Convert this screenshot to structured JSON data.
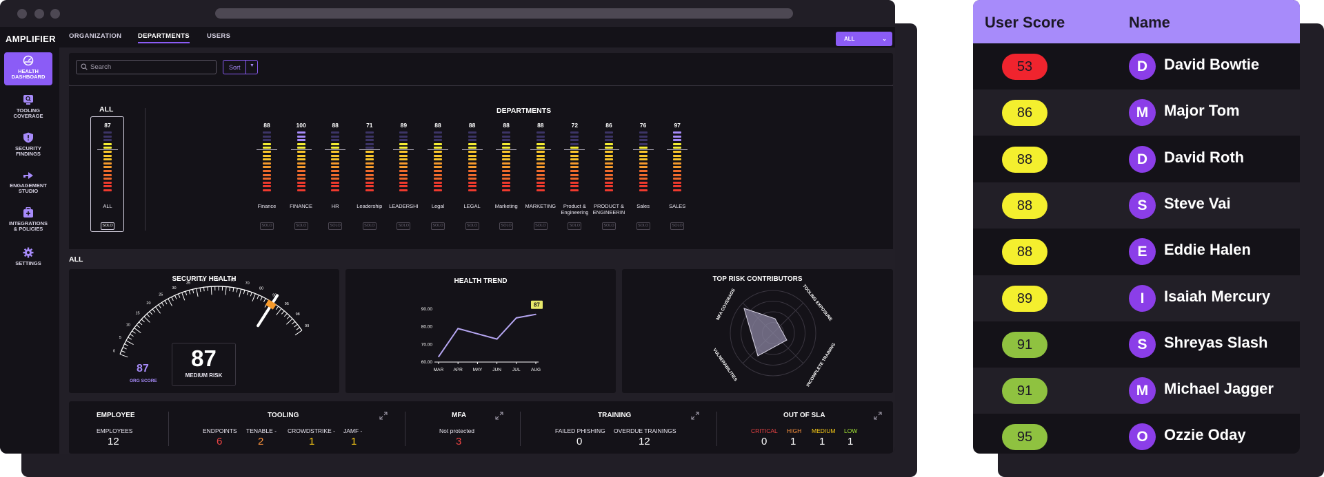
{
  "app": {
    "logo": "AMPLIFIER"
  },
  "sidebar": {
    "items": [
      {
        "label_1": "HEALTH",
        "label_2": "DASHBOARD",
        "icon": "gauge-icon"
      },
      {
        "label_1": "TOOLING",
        "label_2": "COVERAGE",
        "icon": "search-box-icon"
      },
      {
        "label_1": "SECURITY",
        "label_2": "FINDINGS",
        "icon": "shield-icon"
      },
      {
        "label_1": "ENGAGEMENT",
        "label_2": "STUDIO",
        "icon": "arrow-icon"
      },
      {
        "label_1": "INTEGRATIONS",
        "label_2": "& POLICIES",
        "icon": "plus-case-icon"
      },
      {
        "label_1": "SETTINGS",
        "label_2": "",
        "icon": "gear-icon"
      }
    ]
  },
  "tabs": [
    "ORGANIZATION",
    "DEPARTMENTS",
    "USERS"
  ],
  "filter": {
    "selected": "ALL"
  },
  "search": {
    "placeholder": "Search"
  },
  "sort": {
    "label": "Sort"
  },
  "all_column": {
    "title": "ALL",
    "value": "87",
    "name": "ALL",
    "solo": "SOLO",
    "fill": 0.87
  },
  "departments": {
    "title": "DEPARTMENTS",
    "columns": [
      {
        "name_1": "Finance",
        "name_2": "",
        "value": "88",
        "fill": 0.88,
        "tone": "warm"
      },
      {
        "name_1": "FINANCE",
        "name_2": "",
        "value": "100",
        "fill": 1.0,
        "tone": "warm"
      },
      {
        "name_1": "HR",
        "name_2": "",
        "value": "88",
        "fill": 0.88,
        "tone": "warm"
      },
      {
        "name_1": "Leadership",
        "name_2": "",
        "value": "71",
        "fill": 0.71,
        "tone": "warm"
      },
      {
        "name_1": "LEADERSHI",
        "name_2": "",
        "value": "89",
        "fill": 0.89,
        "tone": "warm"
      },
      {
        "name_1": "Legal",
        "name_2": "",
        "value": "88",
        "fill": 0.88,
        "tone": "warm"
      },
      {
        "name_1": "LEGAL",
        "name_2": "",
        "value": "88",
        "fill": 0.88,
        "tone": "warm"
      },
      {
        "name_1": "Marketing",
        "name_2": "",
        "value": "88",
        "fill": 0.88,
        "tone": "warm"
      },
      {
        "name_1": "MARKETING",
        "name_2": "",
        "value": "88",
        "fill": 0.88,
        "tone": "warm"
      },
      {
        "name_1": "Product &",
        "name_2": "Engineering",
        "value": "72",
        "fill": 0.72,
        "tone": "warm"
      },
      {
        "name_1": "PRODUCT &",
        "name_2": "ENGINEERIN",
        "value": "86",
        "fill": 0.86,
        "tone": "warm"
      },
      {
        "name_1": "Sales",
        "name_2": "",
        "value": "76",
        "fill": 0.76,
        "tone": "warm"
      },
      {
        "name_1": "SALES",
        "name_2": "",
        "value": "97",
        "fill": 0.97,
        "tone": "warm"
      }
    ],
    "solo": "SOLO"
  },
  "section_label": "ALL",
  "security_health": {
    "title": "SECURITY HEALTH",
    "score": "87",
    "risk_label": "MEDIUM RISK",
    "org_score": "87",
    "org_score_label": "ORG SCORE",
    "gauge_ticks": [
      "0",
      "5",
      "10",
      "15",
      "20",
      "25",
      "30",
      "35",
      "40",
      "50",
      "60",
      "70",
      "80",
      "90",
      "95",
      "98",
      "99"
    ],
    "needle_value": 87
  },
  "health_trend": {
    "title": "HEALTH TREND",
    "chart_data": {
      "type": "line",
      "x": [
        "MAR",
        "APR",
        "MAY",
        "JUN",
        "JUL",
        "AUG"
      ],
      "y_ticks": [
        "90.00",
        "80.00",
        "70.00",
        "60.00"
      ],
      "values": [
        63,
        79,
        76,
        73,
        85,
        87
      ],
      "ylim": [
        60,
        90
      ],
      "end_label": "87"
    }
  },
  "top_risk": {
    "title": "TOP RISK CONTRIBUTORS",
    "axes": [
      "MFA COVERAGE",
      "TOOLING EXPOSURE",
      "INCOMPLETE TRAINING",
      "VULNERABILITIES"
    ]
  },
  "bottom": {
    "employee": {
      "title": "EMPLOYEE",
      "label": "EMPLOYEES",
      "value": "12"
    },
    "tooling": {
      "title": "TOOLING",
      "items": [
        {
          "label": "ENDPOINTS",
          "value": "6",
          "color": "#ef4444"
        },
        {
          "label": "TENABLE -",
          "value": "2",
          "color": "#fb923c"
        },
        {
          "label": "CROWDSTRIKE -",
          "value": "1",
          "color": "#facc15"
        },
        {
          "label": "JAMF -",
          "value": "1",
          "color": "#facc15"
        }
      ]
    },
    "mfa": {
      "title": "MFA",
      "label": "Not protected",
      "value": "3",
      "color": "#ef4444"
    },
    "training": {
      "title": "TRAINING",
      "items": [
        {
          "label": "FAILED PHISHING",
          "value": "0"
        },
        {
          "label": "OVERDUE TRAININGS",
          "value": "12"
        }
      ]
    },
    "sla": {
      "title": "OUT OF SLA",
      "items": [
        {
          "label": "CRITICAL",
          "value": "0",
          "color": "#ef4444"
        },
        {
          "label": "HIGH",
          "value": "1",
          "color": "#fb923c"
        },
        {
          "label": "MEDIUM",
          "value": "1",
          "color": "#facc15"
        },
        {
          "label": "LOW",
          "value": "1",
          "color": "#a3e635"
        }
      ]
    }
  },
  "users_table": {
    "headers": [
      "User Score",
      "Name"
    ],
    "rows": [
      {
        "score": "53",
        "initial": "D",
        "name": "David Bowtie",
        "color": "#f0242e"
      },
      {
        "score": "86",
        "initial": "M",
        "name": "Major Tom",
        "color": "#f4ef2e"
      },
      {
        "score": "88",
        "initial": "D",
        "name": "David Roth",
        "color": "#f4ef2e"
      },
      {
        "score": "88",
        "initial": "S",
        "name": "Steve Vai",
        "color": "#f4ef2e"
      },
      {
        "score": "88",
        "initial": "E",
        "name": "Eddie Halen",
        "color": "#f4ef2e"
      },
      {
        "score": "89",
        "initial": "I",
        "name": "Isaiah Mercury",
        "color": "#f4ef2e"
      },
      {
        "score": "91",
        "initial": "S",
        "name": "Shreyas Slash",
        "color": "#8fc240"
      },
      {
        "score": "91",
        "initial": "M",
        "name": "Michael Jagger",
        "color": "#8fc240"
      },
      {
        "score": "95",
        "initial": "O",
        "name": "Ozzie Oday",
        "color": "#8fc240"
      }
    ]
  }
}
